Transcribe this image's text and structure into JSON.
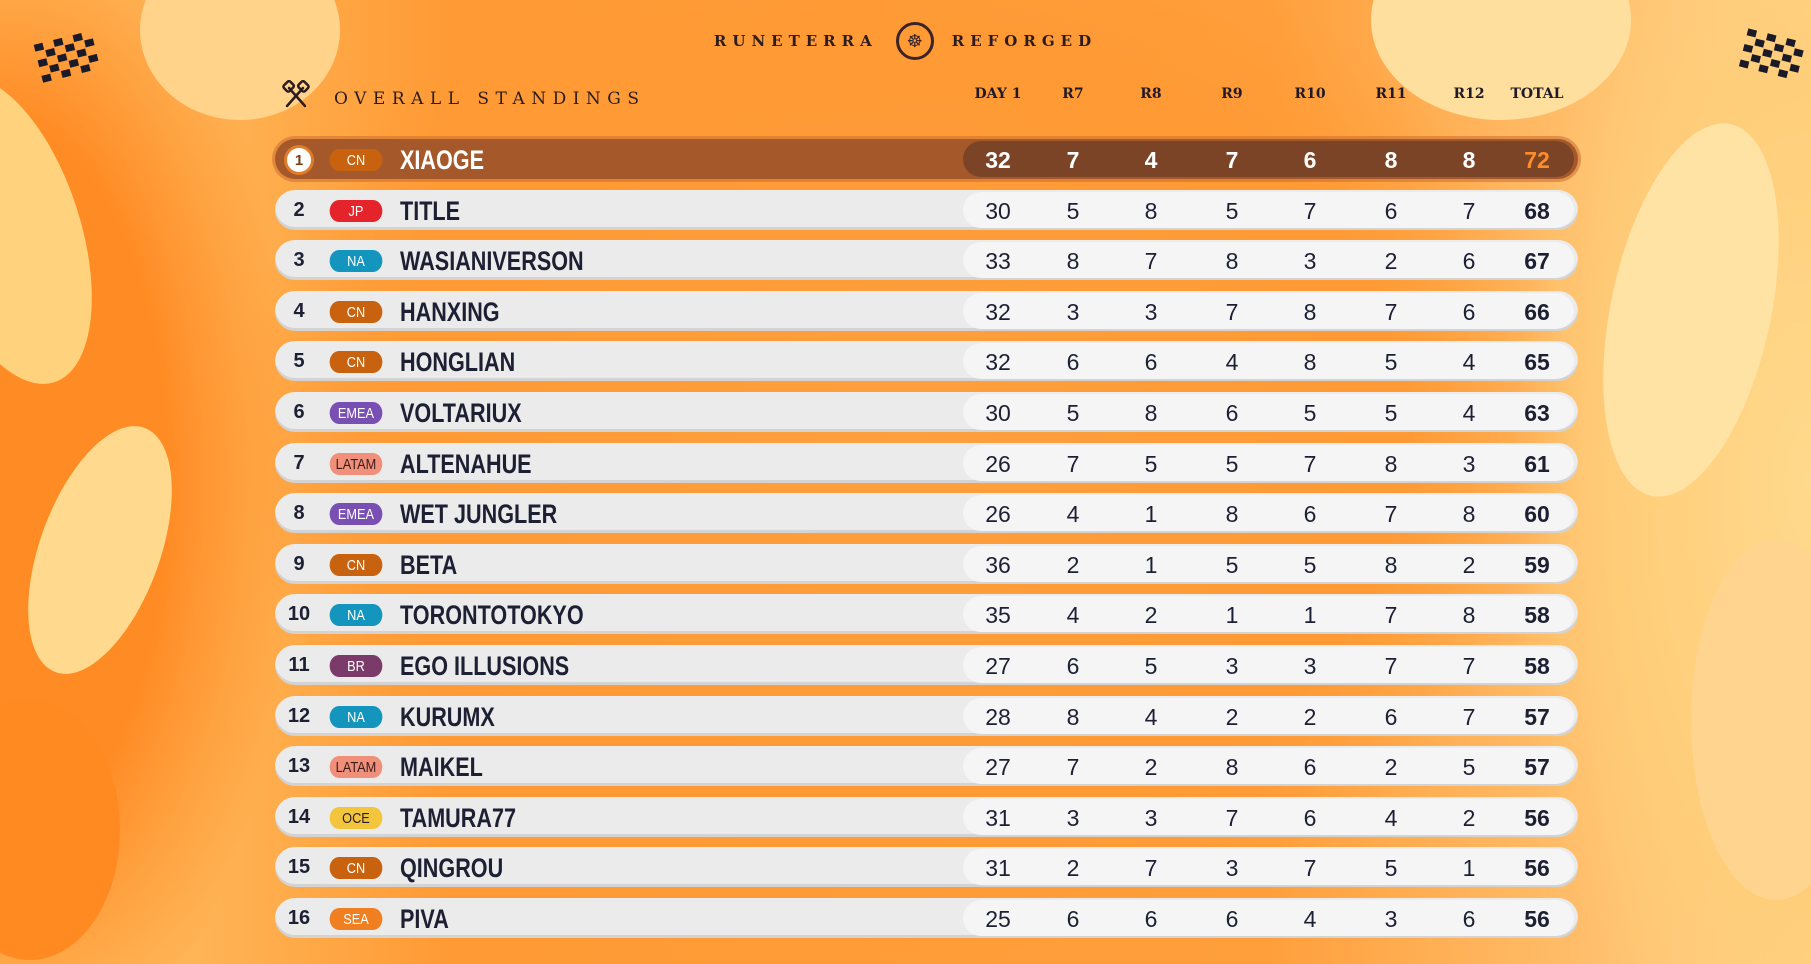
{
  "brand": {
    "left": "RUNETERRA",
    "right": "REFORGED",
    "emblem": "☸"
  },
  "title": "OVERALL STANDINGS",
  "columns": [
    "DAY 1",
    "R7",
    "R8",
    "R9",
    "R10",
    "R11",
    "R12",
    "TOTAL"
  ],
  "region_colors": {
    "CN": "#c8620e",
    "JP": "#e5232b",
    "NA": "#1495bd",
    "EMEA": "#7a4fb3",
    "LATAM": "#f0907a",
    "BR": "#7b3b6a",
    "OCE": "#f2c53d",
    "SEA": "#f07f22"
  },
  "standings": [
    {
      "rank": "1",
      "region": "CN",
      "name": "XIAOGE",
      "scores": [
        "32",
        "7",
        "4",
        "7",
        "6",
        "8",
        "8"
      ],
      "total": "72"
    },
    {
      "rank": "2",
      "region": "JP",
      "name": "TITLE",
      "scores": [
        "30",
        "5",
        "8",
        "5",
        "7",
        "6",
        "7"
      ],
      "total": "68"
    },
    {
      "rank": "3",
      "region": "NA",
      "name": "WASIANIVERSON",
      "scores": [
        "33",
        "8",
        "7",
        "8",
        "3",
        "2",
        "6"
      ],
      "total": "67"
    },
    {
      "rank": "4",
      "region": "CN",
      "name": "HANXING",
      "scores": [
        "32",
        "3",
        "3",
        "7",
        "8",
        "7",
        "6"
      ],
      "total": "66"
    },
    {
      "rank": "5",
      "region": "CN",
      "name": "HONGLIAN",
      "scores": [
        "32",
        "6",
        "6",
        "4",
        "8",
        "5",
        "4"
      ],
      "total": "65"
    },
    {
      "rank": "6",
      "region": "EMEA",
      "name": "VOLTARIUX",
      "scores": [
        "30",
        "5",
        "8",
        "6",
        "5",
        "5",
        "4"
      ],
      "total": "63"
    },
    {
      "rank": "7",
      "region": "LATAM",
      "name": "ALTENAHUE",
      "scores": [
        "26",
        "7",
        "5",
        "5",
        "7",
        "8",
        "3"
      ],
      "total": "61"
    },
    {
      "rank": "8",
      "region": "EMEA",
      "name": "WET JUNGLER",
      "scores": [
        "26",
        "4",
        "1",
        "8",
        "6",
        "7",
        "8"
      ],
      "total": "60"
    },
    {
      "rank": "9",
      "region": "CN",
      "name": "BETA",
      "scores": [
        "36",
        "2",
        "1",
        "5",
        "5",
        "8",
        "2"
      ],
      "total": "59"
    },
    {
      "rank": "10",
      "region": "NA",
      "name": "TORONTOTOKYO",
      "scores": [
        "35",
        "4",
        "2",
        "1",
        "1",
        "7",
        "8"
      ],
      "total": "58"
    },
    {
      "rank": "11",
      "region": "BR",
      "name": "EGO ILLUSIONS",
      "scores": [
        "27",
        "6",
        "5",
        "3",
        "3",
        "7",
        "7"
      ],
      "total": "58"
    },
    {
      "rank": "12",
      "region": "NA",
      "name": "KURUMX",
      "scores": [
        "28",
        "8",
        "4",
        "2",
        "2",
        "6",
        "7"
      ],
      "total": "57"
    },
    {
      "rank": "13",
      "region": "LATAM",
      "name": "MAIKEL",
      "scores": [
        "27",
        "7",
        "2",
        "8",
        "6",
        "2",
        "5"
      ],
      "total": "57"
    },
    {
      "rank": "14",
      "region": "OCE",
      "name": "TAMURA77",
      "scores": [
        "31",
        "3",
        "3",
        "7",
        "6",
        "4",
        "2"
      ],
      "total": "56"
    },
    {
      "rank": "15",
      "region": "CN",
      "name": "QINGROU",
      "scores": [
        "31",
        "2",
        "7",
        "3",
        "7",
        "5",
        "1"
      ],
      "total": "56"
    },
    {
      "rank": "16",
      "region": "SEA",
      "name": "PIVA",
      "scores": [
        "25",
        "6",
        "6",
        "6",
        "4",
        "3",
        "6"
      ],
      "total": "56"
    }
  ],
  "icons": {
    "title_icon": "crossed-spatulas-icon",
    "corner_flags": "checkered-flag-icon"
  }
}
